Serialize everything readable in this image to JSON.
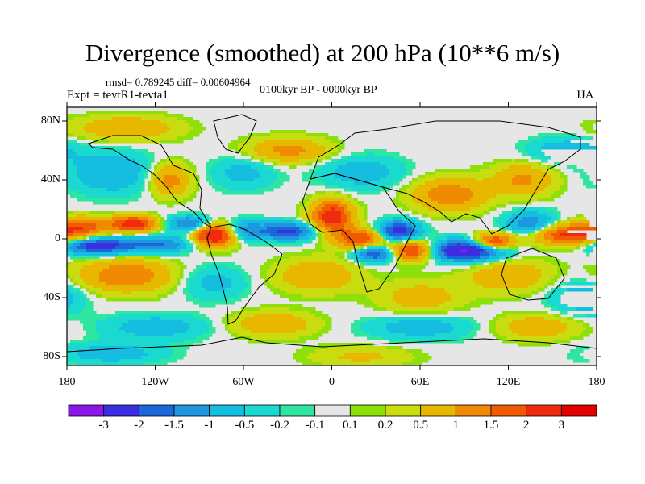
{
  "title": "Divergence (smoothed) at 200 hPa (10**6 m/s)",
  "stats_line": "rmsd= 0.789245 diff= 0.00604964",
  "period": "0100kyr BP - 0000kyr BP",
  "experiment": "Expt = tevtR1-tevta1",
  "season": "JJA",
  "lat_labels": [
    "80N",
    "40N",
    "0",
    "40S",
    "80S"
  ],
  "lon_labels": [
    "180",
    "120W",
    "60W",
    "0",
    "60E",
    "120E",
    "180"
  ],
  "colorbar": {
    "labels": [
      "-3",
      "-2",
      "-1.5",
      "-1",
      "-0.5",
      "-0.2",
      "-0.1",
      "0.1",
      "0.2",
      "0.5",
      "1",
      "1.5",
      "2",
      "3"
    ],
    "colors": [
      "#8b17e8",
      "#3a2ee0",
      "#1b66d8",
      "#1e96e0",
      "#15bde0",
      "#19d9d0",
      "#2ee6a0",
      "#e6e6e6",
      "#8ee00a",
      "#c8dc10",
      "#e8b800",
      "#f08a00",
      "#f05a00",
      "#f02a10",
      "#e00000"
    ]
  },
  "map_background": "#e6e6e6",
  "field_blobs": [
    {
      "lon": -170,
      "lat": 8,
      "v": 1.7,
      "sx": 12,
      "sy": 5
    },
    {
      "lon": -160,
      "lat": -5,
      "v": -2.5,
      "sx": 15,
      "sy": 4
    },
    {
      "lon": -135,
      "lat": 10,
      "v": 2.4,
      "sx": 12,
      "sy": 4
    },
    {
      "lon": -120,
      "lat": -4,
      "v": -1.6,
      "sx": 18,
      "sy": 4
    },
    {
      "lon": -95,
      "lat": 10,
      "v": -1.8,
      "sx": 12,
      "sy": 4
    },
    {
      "lon": -80,
      "lat": 3,
      "v": 3.0,
      "sx": 10,
      "sy": 6
    },
    {
      "lon": -60,
      "lat": 6,
      "v": -1.2,
      "sx": 10,
      "sy": 5
    },
    {
      "lon": -30,
      "lat": 5,
      "v": -2.2,
      "sx": 14,
      "sy": 4
    },
    {
      "lon": 0,
      "lat": 15,
      "v": 2.5,
      "sx": 10,
      "sy": 8
    },
    {
      "lon": 20,
      "lat": 0,
      "v": 2.0,
      "sx": 12,
      "sy": 5
    },
    {
      "lon": 30,
      "lat": -10,
      "v": -2.2,
      "sx": 10,
      "sy": 4
    },
    {
      "lon": 45,
      "lat": 5,
      "v": -2.5,
      "sx": 10,
      "sy": 5
    },
    {
      "lon": 55,
      "lat": -8,
      "v": 2.5,
      "sx": 12,
      "sy": 5
    },
    {
      "lon": 90,
      "lat": -8,
      "v": -3.2,
      "sx": 18,
      "sy": 5
    },
    {
      "lon": 110,
      "lat": -2,
      "v": 2.4,
      "sx": 10,
      "sy": 4
    },
    {
      "lon": 135,
      "lat": 10,
      "v": -1.5,
      "sx": 12,
      "sy": 6
    },
    {
      "lon": 160,
      "lat": 3,
      "v": 2.2,
      "sx": 18,
      "sy": 5
    },
    {
      "lon": -150,
      "lat": 45,
      "v": -1.0,
      "sx": 20,
      "sy": 10
    },
    {
      "lon": -110,
      "lat": 40,
      "v": 1.3,
      "sx": 10,
      "sy": 8
    },
    {
      "lon": -60,
      "lat": 45,
      "v": -0.7,
      "sx": 15,
      "sy": 8
    },
    {
      "lon": -30,
      "lat": 60,
      "v": 1.2,
      "sx": 20,
      "sy": 6
    },
    {
      "lon": 20,
      "lat": 45,
      "v": -0.8,
      "sx": 20,
      "sy": 8
    },
    {
      "lon": 80,
      "lat": 30,
      "v": 1.4,
      "sx": 18,
      "sy": 8
    },
    {
      "lon": 130,
      "lat": 40,
      "v": 1.1,
      "sx": 15,
      "sy": 8
    },
    {
      "lon": 160,
      "lat": 60,
      "v": -0.9,
      "sx": 18,
      "sy": 6
    },
    {
      "lon": -140,
      "lat": 75,
      "v": 1.0,
      "sx": 25,
      "sy": 6
    },
    {
      "lon": -140,
      "lat": -25,
      "v": 1.5,
      "sx": 22,
      "sy": 8
    },
    {
      "lon": -80,
      "lat": -30,
      "v": -0.7,
      "sx": 15,
      "sy": 8
    },
    {
      "lon": -10,
      "lat": -25,
      "v": 1.0,
      "sx": 20,
      "sy": 8
    },
    {
      "lon": 60,
      "lat": -40,
      "v": 0.8,
      "sx": 20,
      "sy": 8
    },
    {
      "lon": 120,
      "lat": -25,
      "v": 1.0,
      "sx": 20,
      "sy": 8
    },
    {
      "lon": 170,
      "lat": -40,
      "v": -0.9,
      "sx": 15,
      "sy": 8
    },
    {
      "lon": -120,
      "lat": -60,
      "v": -0.8,
      "sx": 25,
      "sy": 6
    },
    {
      "lon": -40,
      "lat": -58,
      "v": 1.0,
      "sx": 20,
      "sy": 6
    },
    {
      "lon": 60,
      "lat": -60,
      "v": -0.8,
      "sx": 25,
      "sy": 6
    },
    {
      "lon": 140,
      "lat": -60,
      "v": 0.9,
      "sx": 20,
      "sy": 6
    },
    {
      "lon": -150,
      "lat": -78,
      "v": -0.8,
      "sx": 25,
      "sy": 5
    },
    {
      "lon": 20,
      "lat": -80,
      "v": 0.6,
      "sx": 25,
      "sy": 5
    }
  ]
}
